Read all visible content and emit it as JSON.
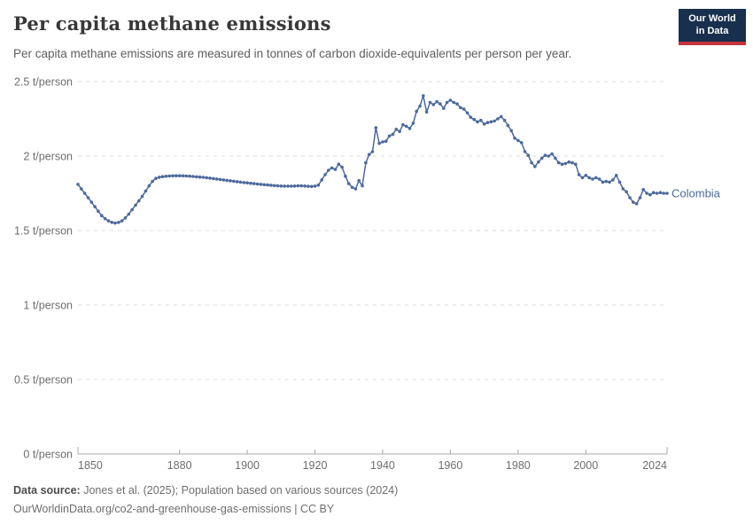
{
  "header": {
    "title": "Per capita methane emissions",
    "subtitle": "Per capita methane emissions are measured in tonnes of carbon dioxide-equivalents per person per year.",
    "logo": {
      "line1": "Our World",
      "line2": "in Data",
      "bg_color": "#18304e",
      "accent_color": "#c5353f"
    }
  },
  "chart_data": {
    "type": "line",
    "title": "Per capita methane emissions",
    "xlabel": "",
    "ylabel": "",
    "unit_suffix": " t/person",
    "xlim": [
      1850,
      2024
    ],
    "ylim": [
      0,
      2.5
    ],
    "xticks": [
      1850,
      1880,
      1900,
      1920,
      1940,
      1960,
      1980,
      2000,
      2024
    ],
    "yticks": [
      0,
      0.5,
      1,
      1.5,
      2,
      2.5
    ],
    "grid": true,
    "legend_position": "end-of-line",
    "colors": {
      "grid": "#dcdcdc",
      "axis": "#a8a8a8",
      "tick_label": "#6e6e6e"
    },
    "series": [
      {
        "name": "Colombia",
        "color": "#4C6A9C",
        "x_start": 1850,
        "x_step": 1,
        "values": [
          1.81,
          1.78,
          1.75,
          1.72,
          1.69,
          1.66,
          1.63,
          1.6,
          1.58,
          1.565,
          1.555,
          1.55,
          1.555,
          1.565,
          1.585,
          1.61,
          1.64,
          1.67,
          1.7,
          1.73,
          1.765,
          1.8,
          1.83,
          1.85,
          1.858,
          1.862,
          1.864,
          1.866,
          1.867,
          1.868,
          1.868,
          1.867,
          1.866,
          1.865,
          1.863,
          1.861,
          1.859,
          1.857,
          1.855,
          1.852,
          1.849,
          1.846,
          1.843,
          1.84,
          1.837,
          1.834,
          1.831,
          1.828,
          1.825,
          1.822,
          1.82,
          1.817,
          1.815,
          1.812,
          1.81,
          1.808,
          1.806,
          1.804,
          1.802,
          1.8,
          1.799,
          1.798,
          1.798,
          1.798,
          1.799,
          1.8,
          1.8,
          1.799,
          1.797,
          1.796,
          1.798,
          1.805,
          1.84,
          1.875,
          1.905,
          1.92,
          1.91,
          1.945,
          1.925,
          1.865,
          1.815,
          1.79,
          1.78,
          1.835,
          1.8,
          1.955,
          2.01,
          2.03,
          2.19,
          2.085,
          2.095,
          2.1,
          2.135,
          2.145,
          2.18,
          2.165,
          2.21,
          2.2,
          2.185,
          2.22,
          2.3,
          2.335,
          2.405,
          2.295,
          2.36,
          2.345,
          2.365,
          2.35,
          2.32,
          2.36,
          2.375,
          2.36,
          2.35,
          2.325,
          2.315,
          2.29,
          2.26,
          2.245,
          2.23,
          2.24,
          2.215,
          2.225,
          2.23,
          2.235,
          2.25,
          2.265,
          2.24,
          2.205,
          2.17,
          2.12,
          2.105,
          2.09,
          2.03,
          2.005,
          1.955,
          1.93,
          1.96,
          1.985,
          2.005,
          2.0,
          2.015,
          1.985,
          1.955,
          1.945,
          1.95,
          1.96,
          1.955,
          1.945,
          1.875,
          1.855,
          1.87,
          1.855,
          1.845,
          1.855,
          1.845,
          1.825,
          1.83,
          1.825,
          1.84,
          1.87,
          1.825,
          1.78,
          1.76,
          1.72,
          1.69,
          1.68,
          1.72,
          1.775,
          1.75,
          1.74,
          1.755,
          1.75,
          1.755,
          1.75,
          1.75
        ]
      }
    ]
  },
  "footer": {
    "data_source_label": "Data source:",
    "data_source_text": " Jones et al. (2025); Population based on various sources (2024)",
    "license_line": "OurWorldinData.org/co2-and-greenhouse-gas-emissions | CC BY"
  }
}
